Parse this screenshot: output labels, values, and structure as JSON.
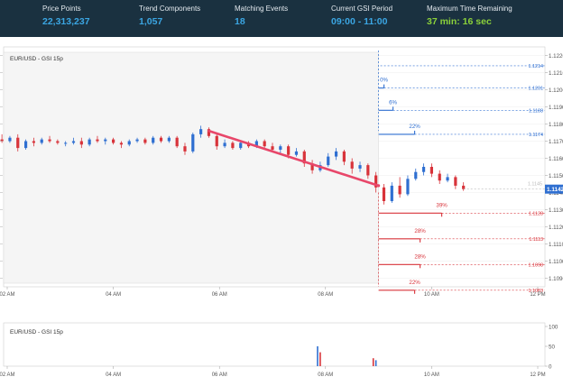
{
  "stats": [
    {
      "label": "Price Points",
      "value": "22,313,237",
      "color": "blue"
    },
    {
      "label": "Trend Components",
      "value": "1,057",
      "color": "blue"
    },
    {
      "label": "Matching Events",
      "value": "18",
      "color": "blue"
    },
    {
      "label": "Current GSI Period",
      "value": "09:00 - 11:00",
      "color": "blue"
    },
    {
      "label": "Maximum Time Remaining",
      "value": "37 min: 16 sec",
      "color": "green"
    }
  ],
  "colors": {
    "up": "#2f6fd1",
    "down": "#d8333a",
    "trend": "#e8476a",
    "header_bg": "#1a3140",
    "shade": "#f5f5f5"
  },
  "chart_data": [
    {
      "type": "candlestick",
      "title": "EUR/USD - GSI 15p",
      "x_tick_labels": [
        "02 AM",
        "04 AM",
        "06 AM",
        "08 AM",
        "10 AM",
        "12 PM"
      ],
      "y_tick_labels": [
        "1.1220",
        "1.1210",
        "1.1200",
        "1.1190",
        "1.1180",
        "1.1170",
        "1.1160",
        "1.1150",
        "1.1140",
        "1.1130",
        "1.1120",
        "1.1110",
        "1.1100",
        "1.1090"
      ],
      "ylim": [
        1.1085,
        1.1225
      ],
      "current_price": "1.1142",
      "current_price_ghost": "1.1145",
      "trend_line": {
        "from": {
          "time": 5.8,
          "price": 1.1176
        },
        "to": {
          "time": 9.0,
          "price": 1.1144
        }
      },
      "projections": {
        "up": [
          {
            "percent": "0%",
            "price": "1.1201",
            "price_value": 1.1201
          },
          {
            "percent": "6%",
            "price": "1.1188",
            "price_value": 1.1188
          },
          {
            "percent": "22%",
            "price": "1.1174",
            "price_value": 1.1174
          }
        ],
        "down": [
          {
            "percent": "39%",
            "price": "1.1128",
            "price_value": 1.1128
          },
          {
            "percent": "28%",
            "price": "1.1113",
            "price_value": 1.1113
          },
          {
            "percent": "28%",
            "price": "1.1098",
            "price_value": 1.1098
          },
          {
            "percent": "22%",
            "price": "1.1083",
            "price_value": 1.1083
          }
        ],
        "top_price": "1.1214",
        "top_price_value": 1.1214
      },
      "candles": [
        {
          "t": 1.3,
          "o": 1.1168,
          "h": 1.1171,
          "l": 1.1166,
          "c": 1.117
        },
        {
          "t": 1.45,
          "o": 1.117,
          "h": 1.1172,
          "l": 1.1167,
          "c": 1.1168
        },
        {
          "t": 1.6,
          "o": 1.1168,
          "h": 1.117,
          "l": 1.1164,
          "c": 1.1166
        },
        {
          "t": 1.75,
          "o": 1.1166,
          "h": 1.1172,
          "l": 1.1165,
          "c": 1.1171
        },
        {
          "t": 1.9,
          "o": 1.1171,
          "h": 1.1174,
          "l": 1.1169,
          "c": 1.117
        },
        {
          "t": 2.05,
          "o": 1.117,
          "h": 1.1173,
          "l": 1.1169,
          "c": 1.1172
        },
        {
          "t": 2.2,
          "o": 1.1172,
          "h": 1.1174,
          "l": 1.1164,
          "c": 1.1166
        },
        {
          "t": 2.35,
          "o": 1.1166,
          "h": 1.1171,
          "l": 1.1165,
          "c": 1.117
        },
        {
          "t": 2.5,
          "o": 1.117,
          "h": 1.1172,
          "l": 1.1167,
          "c": 1.1169
        },
        {
          "t": 2.65,
          "o": 1.1169,
          "h": 1.1172,
          "l": 1.1168,
          "c": 1.1171
        },
        {
          "t": 2.8,
          "o": 1.1171,
          "h": 1.1173,
          "l": 1.1169,
          "c": 1.117
        },
        {
          "t": 2.95,
          "o": 1.117,
          "h": 1.1171,
          "l": 1.1168,
          "c": 1.1169
        },
        {
          "t": 3.1,
          "o": 1.1169,
          "h": 1.117,
          "l": 1.1167,
          "c": 1.1169
        },
        {
          "t": 3.25,
          "o": 1.1169,
          "h": 1.1172,
          "l": 1.1168,
          "c": 1.117
        },
        {
          "t": 3.4,
          "o": 1.117,
          "h": 1.1172,
          "l": 1.1166,
          "c": 1.1168
        },
        {
          "t": 3.55,
          "o": 1.1168,
          "h": 1.1172,
          "l": 1.1167,
          "c": 1.1171
        },
        {
          "t": 3.7,
          "o": 1.1171,
          "h": 1.1173,
          "l": 1.1169,
          "c": 1.117
        },
        {
          "t": 3.85,
          "o": 1.117,
          "h": 1.1172,
          "l": 1.1168,
          "c": 1.1171
        },
        {
          "t": 4.0,
          "o": 1.1171,
          "h": 1.1172,
          "l": 1.1168,
          "c": 1.1169
        },
        {
          "t": 4.15,
          "o": 1.1169,
          "h": 1.117,
          "l": 1.1166,
          "c": 1.1168
        },
        {
          "t": 4.3,
          "o": 1.1168,
          "h": 1.1171,
          "l": 1.1167,
          "c": 1.117
        },
        {
          "t": 4.45,
          "o": 1.117,
          "h": 1.1172,
          "l": 1.1169,
          "c": 1.1171
        },
        {
          "t": 4.6,
          "o": 1.1171,
          "h": 1.1172,
          "l": 1.1168,
          "c": 1.1169
        },
        {
          "t": 4.75,
          "o": 1.1169,
          "h": 1.1173,
          "l": 1.1168,
          "c": 1.1172
        },
        {
          "t": 4.9,
          "o": 1.1172,
          "h": 1.1173,
          "l": 1.1169,
          "c": 1.117
        },
        {
          "t": 5.05,
          "o": 1.117,
          "h": 1.1173,
          "l": 1.1169,
          "c": 1.1172
        },
        {
          "t": 5.2,
          "o": 1.1172,
          "h": 1.1173,
          "l": 1.1166,
          "c": 1.1167
        },
        {
          "t": 5.35,
          "o": 1.1167,
          "h": 1.1169,
          "l": 1.1162,
          "c": 1.1164
        },
        {
          "t": 5.5,
          "o": 1.1164,
          "h": 1.1175,
          "l": 1.1163,
          "c": 1.1174
        },
        {
          "t": 5.65,
          "o": 1.1174,
          "h": 1.1179,
          "l": 1.1172,
          "c": 1.1177
        },
        {
          "t": 5.8,
          "o": 1.1177,
          "h": 1.1178,
          "l": 1.1172,
          "c": 1.1173
        },
        {
          "t": 5.95,
          "o": 1.1173,
          "h": 1.1174,
          "l": 1.1165,
          "c": 1.1167
        },
        {
          "t": 6.1,
          "o": 1.1167,
          "h": 1.1171,
          "l": 1.1166,
          "c": 1.1169
        },
        {
          "t": 6.25,
          "o": 1.1169,
          "h": 1.117,
          "l": 1.1165,
          "c": 1.1166
        },
        {
          "t": 6.4,
          "o": 1.1166,
          "h": 1.117,
          "l": 1.1165,
          "c": 1.1169
        },
        {
          "t": 6.55,
          "o": 1.1169,
          "h": 1.117,
          "l": 1.1166,
          "c": 1.1167
        },
        {
          "t": 6.7,
          "o": 1.1167,
          "h": 1.1171,
          "l": 1.1166,
          "c": 1.117
        },
        {
          "t": 6.85,
          "o": 1.117,
          "h": 1.1171,
          "l": 1.1166,
          "c": 1.1167
        },
        {
          "t": 7.0,
          "o": 1.1167,
          "h": 1.1169,
          "l": 1.1164,
          "c": 1.1165
        },
        {
          "t": 7.15,
          "o": 1.1165,
          "h": 1.1168,
          "l": 1.1163,
          "c": 1.1167
        },
        {
          "t": 7.3,
          "o": 1.1167,
          "h": 1.1168,
          "l": 1.116,
          "c": 1.1162
        },
        {
          "t": 7.45,
          "o": 1.1162,
          "h": 1.1166,
          "l": 1.1161,
          "c": 1.1164
        },
        {
          "t": 7.6,
          "o": 1.1164,
          "h": 1.1165,
          "l": 1.1155,
          "c": 1.1157
        },
        {
          "t": 7.75,
          "o": 1.1157,
          "h": 1.1159,
          "l": 1.1151,
          "c": 1.1153
        },
        {
          "t": 7.9,
          "o": 1.1153,
          "h": 1.1158,
          "l": 1.1152,
          "c": 1.1156
        },
        {
          "t": 8.05,
          "o": 1.1156,
          "h": 1.1163,
          "l": 1.1155,
          "c": 1.1161
        },
        {
          "t": 8.2,
          "o": 1.1161,
          "h": 1.1166,
          "l": 1.1159,
          "c": 1.1164
        },
        {
          "t": 8.35,
          "o": 1.1164,
          "h": 1.1165,
          "l": 1.1156,
          "c": 1.1158
        },
        {
          "t": 8.5,
          "o": 1.1158,
          "h": 1.116,
          "l": 1.1151,
          "c": 1.1154
        },
        {
          "t": 8.65,
          "o": 1.1154,
          "h": 1.1158,
          "l": 1.1152,
          "c": 1.1156
        },
        {
          "t": 8.8,
          "o": 1.1156,
          "h": 1.1157,
          "l": 1.1148,
          "c": 1.115
        },
        {
          "t": 8.95,
          "o": 1.115,
          "h": 1.1152,
          "l": 1.114,
          "c": 1.1143
        },
        {
          "t": 9.1,
          "o": 1.1143,
          "h": 1.1145,
          "l": 1.1133,
          "c": 1.1135
        },
        {
          "t": 9.25,
          "o": 1.1135,
          "h": 1.1146,
          "l": 1.1134,
          "c": 1.1144
        },
        {
          "t": 9.4,
          "o": 1.1144,
          "h": 1.1149,
          "l": 1.1137,
          "c": 1.1139
        },
        {
          "t": 9.55,
          "o": 1.1139,
          "h": 1.115,
          "l": 1.1138,
          "c": 1.1148
        },
        {
          "t": 9.7,
          "o": 1.1148,
          "h": 1.1154,
          "l": 1.1147,
          "c": 1.1152
        },
        {
          "t": 9.85,
          "o": 1.1152,
          "h": 1.1157,
          "l": 1.115,
          "c": 1.1155
        },
        {
          "t": 10.0,
          "o": 1.1155,
          "h": 1.1157,
          "l": 1.1149,
          "c": 1.1151
        },
        {
          "t": 10.15,
          "o": 1.1151,
          "h": 1.1153,
          "l": 1.1145,
          "c": 1.1147
        },
        {
          "t": 10.3,
          "o": 1.1147,
          "h": 1.1151,
          "l": 1.1146,
          "c": 1.1149
        },
        {
          "t": 10.45,
          "o": 1.1149,
          "h": 1.115,
          "l": 1.1142,
          "c": 1.1144
        },
        {
          "t": 10.6,
          "o": 1.1144,
          "h": 1.1146,
          "l": 1.1141,
          "c": 1.1142
        }
      ]
    },
    {
      "type": "bar",
      "title": "EUR/USD - GSI 15p",
      "x_tick_labels": [
        "02 AM",
        "04 AM",
        "06 AM",
        "08 AM",
        "10 AM",
        "12 PM"
      ],
      "y_tick_labels": [
        "100",
        "50",
        "0"
      ],
      "ylim": [
        0,
        100
      ],
      "bars": [
        {
          "t": 7.85,
          "value": 50,
          "color": "up"
        },
        {
          "t": 7.9,
          "value": 35,
          "color": "down"
        },
        {
          "t": 8.9,
          "value": 20,
          "color": "down"
        },
        {
          "t": 8.95,
          "value": 15,
          "color": "up"
        }
      ]
    }
  ]
}
